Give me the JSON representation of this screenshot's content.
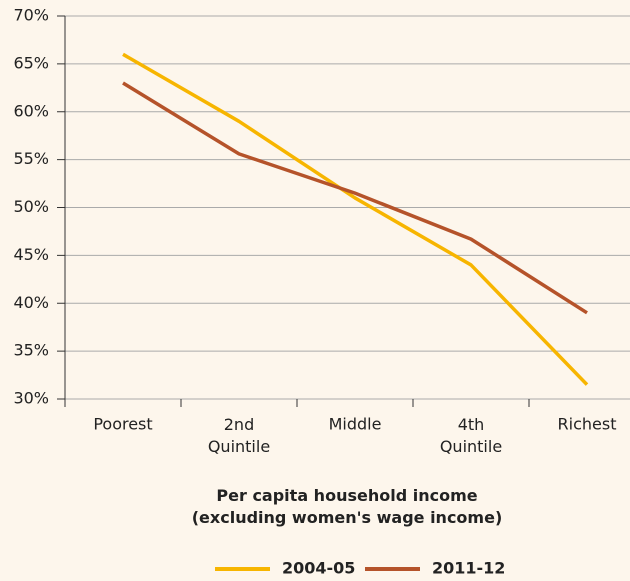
{
  "chart_data": {
    "type": "line",
    "categories": [
      "Poorest",
      "2nd\nQuintile",
      "Middle",
      "4th\nQuintile",
      "Richest"
    ],
    "series": [
      {
        "name": "2004-05",
        "color": "#f7b500",
        "values": [
          66,
          59,
          51,
          44,
          31.5
        ]
      },
      {
        "name": "2011-12",
        "color": "#b5532a",
        "values": [
          63,
          55.6,
          51.5,
          46.7,
          39
        ]
      }
    ],
    "x_label": "Per capita household income\n(excluding women's wage income)",
    "ylim": [
      30,
      70
    ],
    "yticks": [
      {
        "value": 30,
        "label": "30%"
      },
      {
        "value": 35,
        "label": "35%"
      },
      {
        "value": 40,
        "label": "40%"
      },
      {
        "value": 45,
        "label": "45%"
      },
      {
        "value": 50,
        "label": "50%"
      },
      {
        "value": 55,
        "label": "55%"
      },
      {
        "value": 60,
        "label": "60%"
      },
      {
        "value": 65,
        "label": "65%"
      },
      {
        "value": 70,
        "label": "70%"
      }
    ],
    "grid": true,
    "legend": "bottom"
  }
}
